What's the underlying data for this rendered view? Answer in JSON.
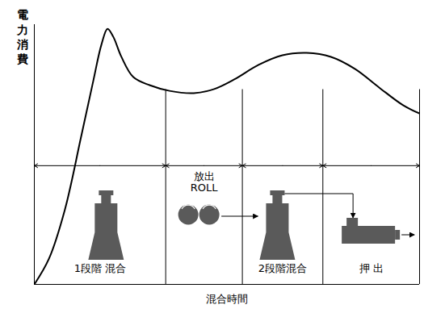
{
  "chart_data": {
    "type": "line",
    "x_label": "混合時間",
    "y_label": "電力消費",
    "xlim": [
      0,
      100
    ],
    "ylim": [
      0,
      100
    ],
    "tick_labels": false,
    "color": "#000000",
    "x": [
      0,
      3.8,
      7.9,
      12.1,
      15.3,
      17.4,
      19.0,
      20.5,
      22.6,
      25.7,
      29.9,
      35.1,
      41.4,
      46.7,
      51.9,
      58.2,
      64.4,
      70.7,
      77.0,
      83.3,
      89.5,
      95.8,
      100
    ],
    "values": [
      0,
      9.9,
      28.6,
      56.5,
      78.3,
      92.2,
      98.4,
      95.3,
      87.6,
      79.8,
      76.7,
      74.5,
      73.6,
      75.2,
      78.9,
      84.5,
      88.2,
      89.1,
      87.6,
      82.9,
      75.8,
      68.9,
      65.8
    ],
    "stages": [
      {
        "label": "1段階 混合",
        "start": 0,
        "end": 34.1
      },
      {
        "label": "放出\nROLL",
        "start": 34.1,
        "end": 54.0
      },
      {
        "label": "2段階混合",
        "start": 54.0,
        "end": 74.9
      },
      {
        "label": "押 出",
        "start": 74.9,
        "end": 100
      }
    ]
  }
}
